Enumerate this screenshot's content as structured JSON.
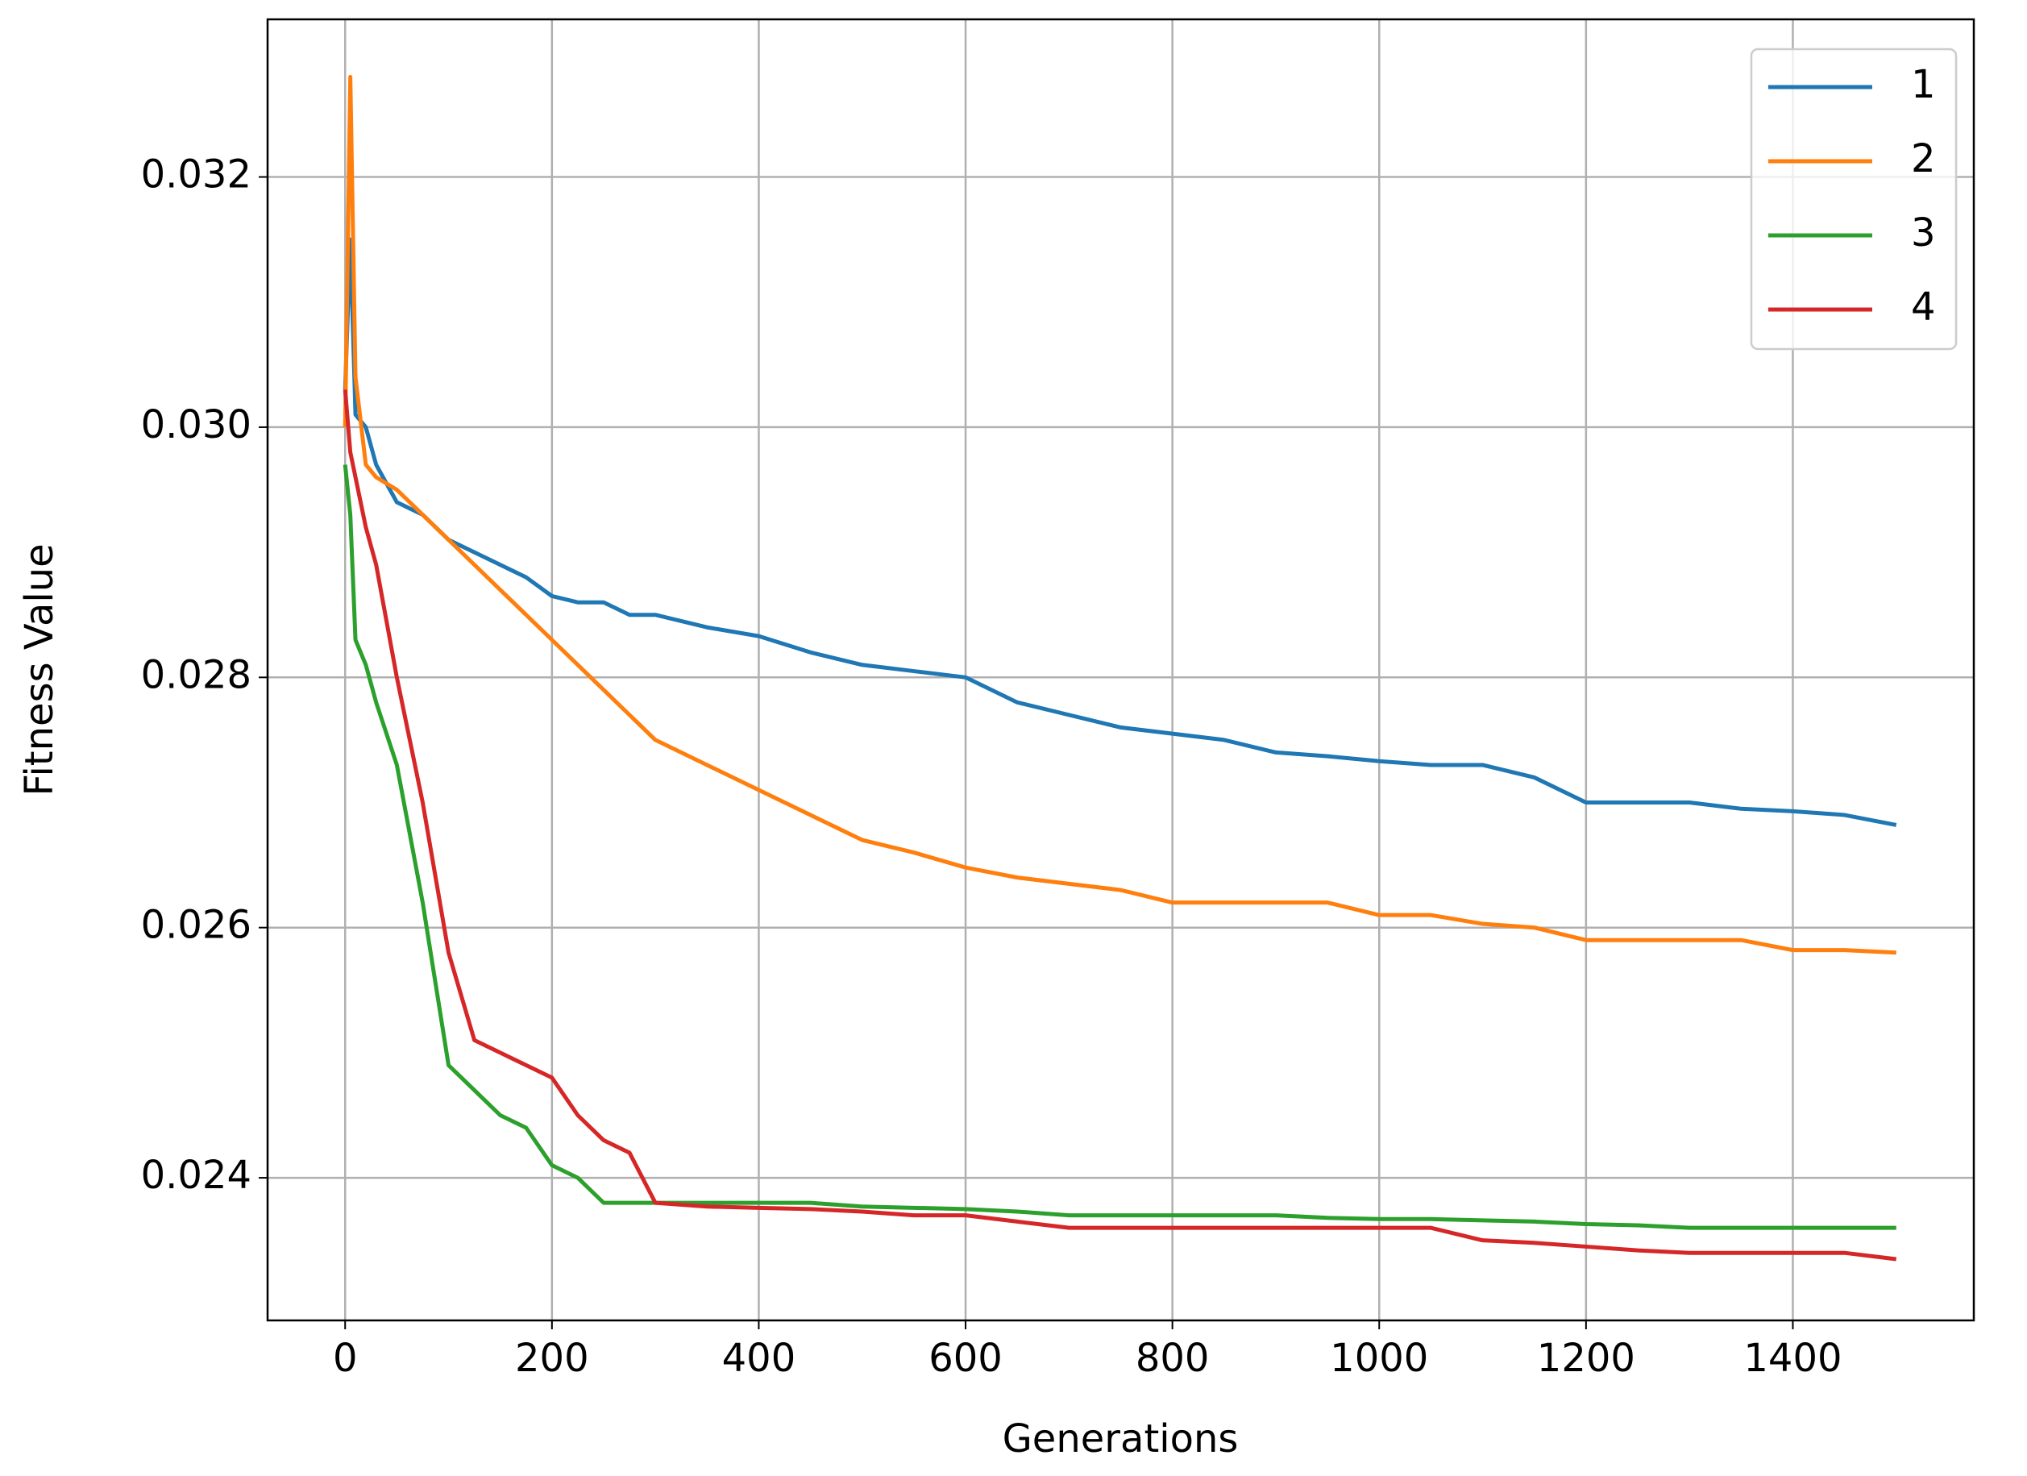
{
  "chart_data": {
    "type": "line",
    "x_label": "Generations",
    "y_label": "Fitness Value",
    "x": [
      0,
      5,
      10,
      20,
      30,
      50,
      75,
      100,
      125,
      150,
      175,
      200,
      225,
      250,
      275,
      300,
      350,
      400,
      450,
      500,
      550,
      600,
      650,
      700,
      750,
      800,
      850,
      900,
      950,
      1000,
      1050,
      1100,
      1150,
      1200,
      1250,
      1300,
      1350,
      1400,
      1450,
      1500
    ],
    "series": [
      {
        "name": "1",
        "color": "#1f77b4",
        "values": [
          0.0303,
          0.0315,
          0.0301,
          0.03,
          0.0297,
          0.0294,
          0.0293,
          0.0291,
          0.029,
          0.0289,
          0.0288,
          0.02865,
          0.0286,
          0.0286,
          0.0285,
          0.0285,
          0.0284,
          0.02833,
          0.0282,
          0.0281,
          0.02805,
          0.028,
          0.0278,
          0.0277,
          0.0276,
          0.02755,
          0.0275,
          0.0274,
          0.02737,
          0.02733,
          0.0273,
          0.0273,
          0.0272,
          0.027,
          0.027,
          0.027,
          0.02695,
          0.02693,
          0.0269,
          0.02682
        ]
      },
      {
        "name": "2",
        "color": "#ff7f0e",
        "values": [
          0.03,
          0.0328,
          0.0304,
          0.0297,
          0.0296,
          0.0295,
          0.0293,
          0.0291,
          0.0289,
          0.0287,
          0.0285,
          0.0283,
          0.0281,
          0.0279,
          0.0277,
          0.0275,
          0.0273,
          0.0271,
          0.0269,
          0.0267,
          0.0266,
          0.02648,
          0.0264,
          0.02635,
          0.0263,
          0.0262,
          0.0262,
          0.0262,
          0.0262,
          0.0261,
          0.0261,
          0.02603,
          0.026,
          0.0259,
          0.0259,
          0.0259,
          0.0259,
          0.02582,
          0.02582,
          0.0258
        ]
      },
      {
        "name": "3",
        "color": "#2ca02c",
        "values": [
          0.0297,
          0.0293,
          0.0283,
          0.0281,
          0.0278,
          0.0273,
          0.0262,
          0.0249,
          0.0247,
          0.0245,
          0.0244,
          0.0241,
          0.024,
          0.0238,
          0.0238,
          0.0238,
          0.0238,
          0.0238,
          0.0238,
          0.02377,
          0.02376,
          0.02375,
          0.02373,
          0.0237,
          0.0237,
          0.0237,
          0.0237,
          0.0237,
          0.02368,
          0.02367,
          0.02367,
          0.02366,
          0.02365,
          0.02363,
          0.02362,
          0.0236,
          0.0236,
          0.0236,
          0.0236,
          0.0236
        ]
      },
      {
        "name": "4",
        "color": "#d62728",
        "values": [
          0.0303,
          0.0298,
          0.0296,
          0.0292,
          0.0289,
          0.028,
          0.027,
          0.0258,
          0.0251,
          0.025,
          0.0249,
          0.0248,
          0.0245,
          0.0243,
          0.0242,
          0.0238,
          0.02377,
          0.02376,
          0.02375,
          0.02373,
          0.0237,
          0.0237,
          0.02365,
          0.0236,
          0.0236,
          0.0236,
          0.0236,
          0.0236,
          0.0236,
          0.0236,
          0.0236,
          0.0235,
          0.02348,
          0.02345,
          0.02342,
          0.0234,
          0.0234,
          0.0234,
          0.0234,
          0.02335
        ]
      }
    ],
    "xlim": [
      -75,
      1575
    ],
    "ylim": [
      0.02286,
      0.03326
    ],
    "xticks": [
      0,
      200,
      400,
      600,
      800,
      1000,
      1200,
      1400
    ],
    "yticks": [
      0.024,
      0.026,
      0.028,
      {
        "value": 0.03,
        "label": "0.030"
      },
      0.032
    ],
    "grid": true,
    "legend": "upper right"
  }
}
